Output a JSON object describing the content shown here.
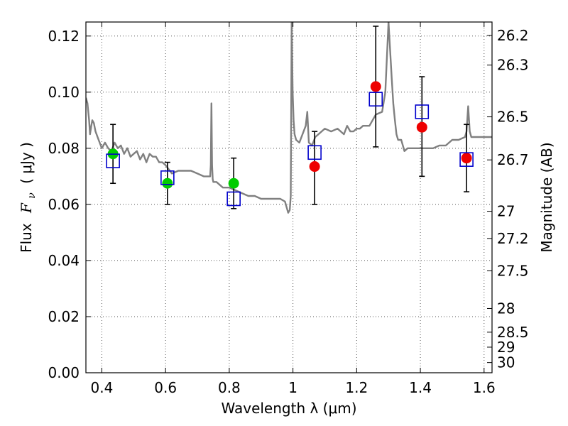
{
  "chart_data": {
    "type": "scatter",
    "title": "",
    "xlabel": "Wavelength  λ (μm)",
    "ylabel_text": "Flux",
    "ylabel_symbol": "F",
    "ylabel_subscript": "ν",
    "ylabel_unit": "( μJy )",
    "y2label": "Magnitude (AB)",
    "xlim": [
      0.35,
      1.625
    ],
    "ylim": [
      0.0,
      0.125
    ],
    "grid": true,
    "x_ticks": [
      0.4,
      0.6,
      0.8,
      1.0,
      1.2,
      1.4,
      1.6
    ],
    "x_tick_labels": [
      "0.4",
      "0.6",
      "0.8",
      "1",
      "1.2",
      "1.4",
      "1.6"
    ],
    "y_ticks": [
      0.0,
      0.02,
      0.04,
      0.06,
      0.08,
      0.1,
      0.12
    ],
    "y_tick_labels": [
      "0.00",
      "0.02",
      "0.04",
      "0.06",
      "0.08",
      "0.10",
      "0.12"
    ],
    "mag_ticks": [
      26.2,
      26.3,
      26.5,
      26.7,
      27,
      27.2,
      27.5,
      28,
      28.5,
      29,
      30
    ],
    "mag_tick_labels": [
      "26.2",
      "26.3",
      "26.5",
      "26.7",
      "27",
      "27.2",
      "27.5",
      "28",
      "28.5",
      "29",
      "30"
    ],
    "colors": {
      "model_line": "#808080",
      "model_points": "#0000cc",
      "optical_points": "#00cc00",
      "nir_points": "#ee0000",
      "error_bars": "#000000",
      "grid": "#555555"
    },
    "model_spectrum": {
      "x": [
        0.35,
        0.355,
        0.36,
        0.363,
        0.367,
        0.37,
        0.375,
        0.38,
        0.39,
        0.4,
        0.41,
        0.42,
        0.43,
        0.44,
        0.45,
        0.46,
        0.47,
        0.48,
        0.49,
        0.5,
        0.51,
        0.52,
        0.53,
        0.54,
        0.55,
        0.56,
        0.57,
        0.58,
        0.59,
        0.6,
        0.62,
        0.64,
        0.66,
        0.68,
        0.7,
        0.72,
        0.74,
        0.742,
        0.744,
        0.746,
        0.748,
        0.75,
        0.76,
        0.78,
        0.8,
        0.82,
        0.84,
        0.86,
        0.88,
        0.9,
        0.92,
        0.94,
        0.96,
        0.975,
        0.985,
        0.99,
        0.993,
        0.996,
        0.999,
        1.002,
        1.005,
        1.01,
        1.02,
        1.03,
        1.04,
        1.045,
        1.05,
        1.06,
        1.07,
        1.08,
        1.09,
        1.1,
        1.12,
        1.14,
        1.16,
        1.17,
        1.18,
        1.19,
        1.2,
        1.21,
        1.22,
        1.24,
        1.26,
        1.28,
        1.29,
        1.3,
        1.31,
        1.315,
        1.32,
        1.325,
        1.33,
        1.34,
        1.345,
        1.35,
        1.36,
        1.38,
        1.4,
        1.42,
        1.44,
        1.46,
        1.48,
        1.5,
        1.52,
        1.54,
        1.545,
        1.55,
        1.555,
        1.56,
        1.58,
        1.6,
        1.625
      ],
      "y": [
        0.098,
        0.096,
        0.09,
        0.085,
        0.088,
        0.09,
        0.089,
        0.086,
        0.083,
        0.08,
        0.082,
        0.08,
        0.079,
        0.082,
        0.08,
        0.081,
        0.078,
        0.08,
        0.077,
        0.078,
        0.079,
        0.076,
        0.078,
        0.075,
        0.078,
        0.077,
        0.077,
        0.075,
        0.075,
        0.074,
        0.071,
        0.072,
        0.072,
        0.072,
        0.071,
        0.07,
        0.07,
        0.074,
        0.096,
        0.074,
        0.069,
        0.068,
        0.068,
        0.066,
        0.066,
        0.065,
        0.064,
        0.063,
        0.063,
        0.062,
        0.062,
        0.062,
        0.062,
        0.061,
        0.057,
        0.058,
        0.063,
        0.125,
        0.1,
        0.09,
        0.085,
        0.083,
        0.082,
        0.085,
        0.088,
        0.093,
        0.082,
        0.081,
        0.084,
        0.085,
        0.086,
        0.087,
        0.086,
        0.087,
        0.085,
        0.088,
        0.086,
        0.086,
        0.087,
        0.087,
        0.088,
        0.088,
        0.092,
        0.093,
        0.1,
        0.125,
        0.105,
        0.096,
        0.09,
        0.085,
        0.083,
        0.083,
        0.081,
        0.079,
        0.08,
        0.08,
        0.08,
        0.08,
        0.08,
        0.081,
        0.081,
        0.083,
        0.083,
        0.084,
        0.086,
        0.095,
        0.086,
        0.084,
        0.084,
        0.084,
        0.084
      ]
    },
    "model_photometry": {
      "x": [
        0.435,
        0.606,
        0.814,
        1.068,
        1.26,
        1.405,
        1.545
      ],
      "y": [
        0.0755,
        0.0695,
        0.062,
        0.0785,
        0.0975,
        0.093,
        0.076
      ]
    },
    "observed_optical": {
      "x": [
        0.435,
        0.606,
        0.814
      ],
      "y": [
        0.078,
        0.0675,
        0.0675
      ],
      "err_low": [
        0.0105,
        0.0075,
        0.009
      ],
      "err_high": [
        0.0105,
        0.0075,
        0.009
      ]
    },
    "observed_nir": {
      "x": [
        1.068,
        1.26,
        1.405,
        1.545
      ],
      "y": [
        0.0735,
        0.102,
        0.0875,
        0.0765
      ],
      "err_low": [
        0.0135,
        0.0215,
        0.0175,
        0.012
      ],
      "err_high": [
        0.0125,
        0.0215,
        0.018,
        0.012
      ]
    }
  }
}
